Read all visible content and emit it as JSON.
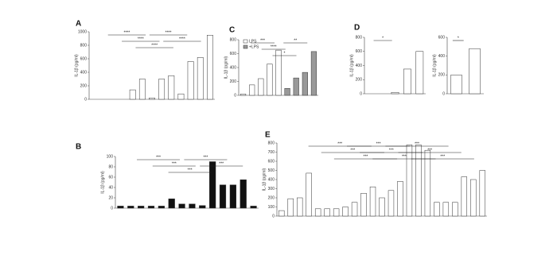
{
  "chart_data": [
    {
      "type": "bar",
      "panel": "A",
      "ylabel": "IL-1β (pg/ml)",
      "ylim": [
        0,
        1000
      ],
      "yticks": [
        0,
        200,
        400,
        600,
        800,
        1000
      ],
      "series": [
        {
          "name": "IL-1β",
          "color": "#ffffff",
          "values": [
            0,
            0,
            0,
            0,
            140,
            300,
            20,
            300,
            350,
            80,
            560,
            620,
            950
          ]
        }
      ],
      "annotations": [
        "****",
        "****",
        "****",
        "****",
        "****"
      ]
    },
    {
      "type": "bar",
      "panel": "B",
      "ylabel": "IL-1β (pg/ml)",
      "ylim": [
        0,
        100
      ],
      "yticks": [
        0,
        20,
        40,
        60,
        80,
        100
      ],
      "series": [
        {
          "name": "IL-1β",
          "color": "#111111",
          "values": [
            4,
            4,
            4,
            4,
            4,
            18,
            8,
            8,
            5,
            90,
            45,
            45,
            55,
            4
          ]
        }
      ],
      "annotations": [
        "***",
        "***",
        "***",
        "***",
        "***"
      ]
    },
    {
      "type": "bar",
      "panel": "C",
      "ylabel": "IL-1β (pg/ml)",
      "ylim": [
        0,
        800
      ],
      "yticks": [
        0,
        200,
        400,
        600,
        800
      ],
      "legend": true,
      "series": [
        {
          "name": "LPS",
          "color": "#ffffff",
          "values": [
            20,
            150,
            240,
            450,
            650,
            null,
            null,
            null,
            null
          ]
        },
        {
          "name": "+LPS",
          "color": "#999999",
          "values": [
            null,
            null,
            null,
            null,
            null,
            100,
            250,
            330,
            630
          ]
        }
      ],
      "annotations": [
        "***",
        "****",
        "*",
        "**"
      ]
    },
    {
      "type": "bar",
      "panel": "D",
      "ylabel": "IL-1β (pg/ml)",
      "ylim": [
        0,
        800
      ],
      "yticks": [
        0,
        200,
        400,
        600,
        800
      ],
      "series": [
        {
          "name": "IL-1β",
          "color": "#ffffff",
          "values": [
            0,
            0,
            20,
            350,
            600
          ]
        }
      ],
      "annotations": [
        "*"
      ]
    },
    {
      "type": "bar",
      "ylabel": "IL-1β (pg/ml)",
      "ylim": [
        0,
        600
      ],
      "yticks": [
        0,
        200,
        400,
        600
      ],
      "series": [
        {
          "name": "IL-1β",
          "color": "#ffffff",
          "values": [
            200,
            480
          ]
        }
      ],
      "annotations": [
        "*"
      ]
    },
    {
      "type": "bar",
      "panel": "E",
      "ylabel": "IL-1β (pg/ml)",
      "ylim": [
        0,
        800
      ],
      "yticks": [
        0,
        100,
        200,
        300,
        400,
        500,
        600,
        700,
        800
      ],
      "series": [
        {
          "name": "IL-1β",
          "color": "#ffffff",
          "values": [
            60,
            190,
            200,
            470,
            80,
            80,
            80,
            100,
            150,
            250,
            320,
            200,
            280,
            380,
            780,
            780,
            720,
            150,
            150,
            150,
            430,
            400,
            500
          ]
        }
      ],
      "annotations": [
        "***",
        "***",
        "***",
        "***",
        "***",
        "***",
        "***",
        "***",
        "***"
      ]
    }
  ]
}
